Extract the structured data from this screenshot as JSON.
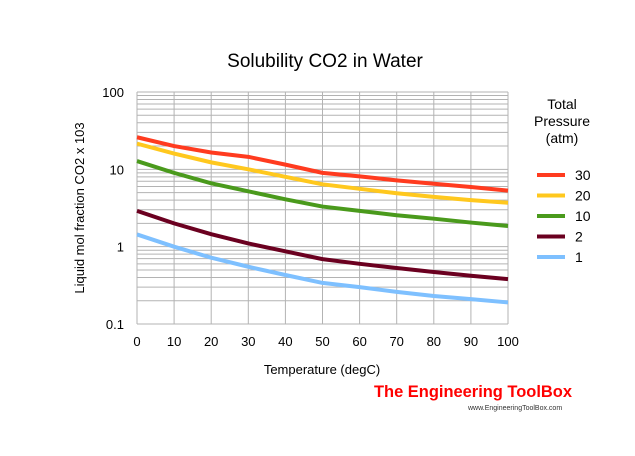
{
  "chart_data": {
    "type": "line",
    "title": "Solubility CO2 in Water",
    "xlabel": "Temperature (degC)",
    "ylabel": "Liquid mol fraction CO2 x 103",
    "xlim": [
      0,
      100
    ],
    "ylim": [
      0.1,
      100
    ],
    "yscale": "log",
    "grid": true,
    "x_ticks": [
      "0",
      "10",
      "20",
      "30",
      "40",
      "50",
      "60",
      "70",
      "80",
      "90",
      "100"
    ],
    "y_ticks": [
      "0.1",
      "1",
      "10",
      "100"
    ],
    "legend": {
      "title": "Total Pressure (atm)",
      "title_lines": [
        "Total",
        "Pressure",
        "(atm)"
      ],
      "placement": "right"
    },
    "x": [
      0,
      10,
      20,
      30,
      40,
      50,
      60,
      70,
      80,
      90,
      100
    ],
    "series": [
      {
        "name": "30",
        "color": "#ff3b1f",
        "values": [
          26,
          20,
          16.5,
          14.5,
          11.5,
          9,
          8.1,
          7.2,
          6.5,
          5.9,
          5.3
        ]
      },
      {
        "name": "20",
        "color": "#ffc81e",
        "values": [
          21.5,
          16,
          12.3,
          10,
          8,
          6.4,
          5.6,
          4.9,
          4.4,
          4,
          3.7
        ]
      },
      {
        "name": "10",
        "color": "#4a9a1c",
        "values": [
          12.8,
          9,
          6.6,
          5.2,
          4.1,
          3.3,
          2.9,
          2.55,
          2.3,
          2.05,
          1.85
        ]
      },
      {
        "name": "2",
        "color": "#6b0020",
        "values": [
          2.9,
          2.0,
          1.45,
          1.1,
          0.87,
          0.69,
          0.6,
          0.53,
          0.47,
          0.42,
          0.38
        ]
      },
      {
        "name": "1",
        "color": "#7ec0ff",
        "values": [
          1.44,
          1.0,
          0.72,
          0.55,
          0.43,
          0.34,
          0.3,
          0.26,
          0.23,
          0.21,
          0.19
        ]
      }
    ]
  },
  "watermark": {
    "brand": "The Engineering ToolBox",
    "url": "www.EngineeringToolBox.com",
    "color": "#ff0000"
  }
}
